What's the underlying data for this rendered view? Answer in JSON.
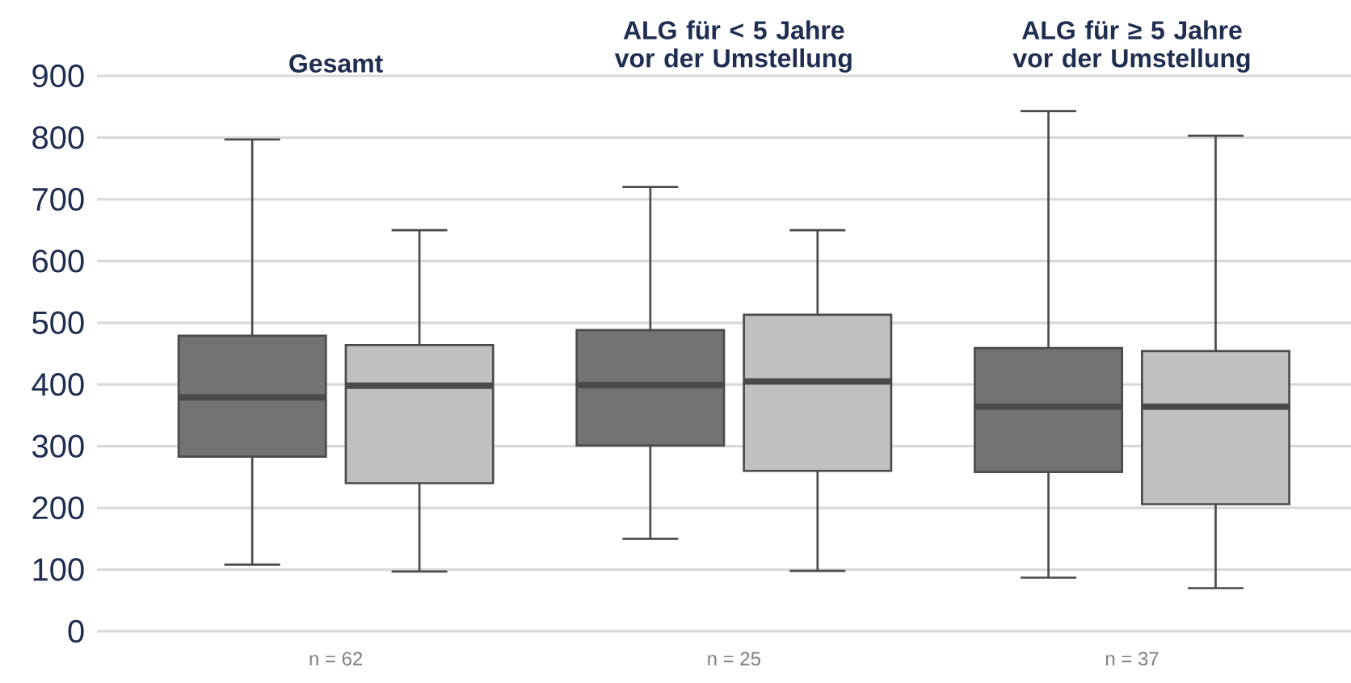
{
  "chart_data": {
    "type": "box",
    "categories": [
      "Gesamt",
      "ALG für < 5 Jahre vor der Umstellung",
      "ALG für ≥ 5 Jahre vor der Umstellung"
    ],
    "series": [
      {
        "color": "#737373",
        "boxes": [
          {
            "low": 108,
            "q1": 283,
            "median": 379,
            "q3": 479,
            "high": 797
          },
          {
            "low": 150,
            "q1": 301,
            "median": 399,
            "q3": 488,
            "high": 720
          },
          {
            "low": 87,
            "q1": 258,
            "median": 364,
            "q3": 459,
            "high": 843
          }
        ]
      },
      {
        "color": "#c0c0c0",
        "boxes": [
          {
            "low": 97,
            "q1": 240,
            "median": 398,
            "q3": 464,
            "high": 650
          },
          {
            "low": 98,
            "q1": 260,
            "median": 405,
            "q3": 513,
            "high": 650
          },
          {
            "low": 70,
            "q1": 206,
            "median": 364,
            "q3": 454,
            "high": 803
          }
        ]
      }
    ],
    "ylim": [
      0,
      900
    ],
    "yticks": [
      0,
      100,
      200,
      300,
      400,
      500,
      600,
      700,
      800,
      900
    ],
    "grid": "y",
    "annotations": [
      "n = 62",
      "n = 25",
      "n = 37"
    ]
  }
}
